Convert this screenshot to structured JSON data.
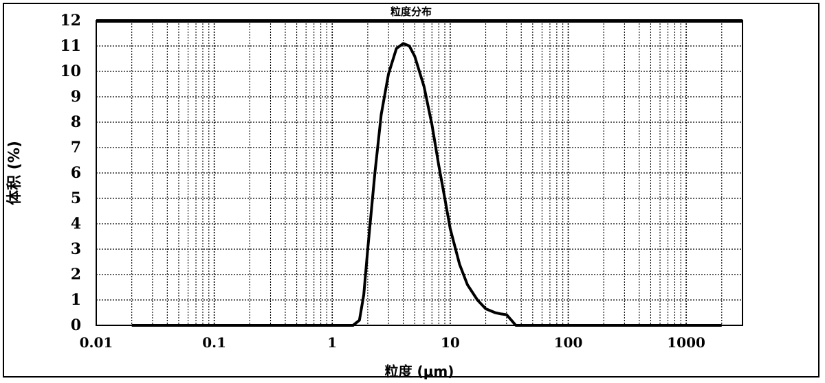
{
  "chart_data": {
    "type": "line",
    "title": "粒度分布",
    "xlabel": "粒度 (μm)",
    "ylabel": "体积 (%)",
    "xscale": "log",
    "xlim": [
      0.01,
      3000
    ],
    "ylim": [
      0,
      12
    ],
    "grid": true,
    "xticks": [
      {
        "value": 0.01,
        "label": "0.01"
      },
      {
        "value": 0.1,
        "label": "0.1"
      },
      {
        "value": 1,
        "label": "1"
      },
      {
        "value": 10,
        "label": "10"
      },
      {
        "value": 100,
        "label": "100"
      },
      {
        "value": 1000,
        "label": "1000"
      }
    ],
    "yticks": [
      "0",
      "1",
      "2",
      "3",
      "4",
      "5",
      "6",
      "7",
      "8",
      "9",
      "10",
      "11",
      "12"
    ],
    "series": [
      {
        "color": "#000000",
        "points": [
          [
            0.02,
            0
          ],
          [
            0.05,
            0
          ],
          [
            0.2,
            0
          ],
          [
            0.5,
            0
          ],
          [
            1.0,
            0
          ],
          [
            1.5,
            0
          ],
          [
            1.7,
            0.2
          ],
          [
            1.85,
            1.2
          ],
          [
            2.0,
            3.0
          ],
          [
            2.3,
            6.0
          ],
          [
            2.6,
            8.3
          ],
          [
            3.0,
            9.9
          ],
          [
            3.5,
            10.9
          ],
          [
            4.0,
            11.1
          ],
          [
            4.5,
            11.0
          ],
          [
            5.0,
            10.6
          ],
          [
            6.0,
            9.4
          ],
          [
            7.0,
            7.9
          ],
          [
            8.0,
            6.3
          ],
          [
            9.0,
            5.0
          ],
          [
            10.0,
            3.8
          ],
          [
            12.0,
            2.4
          ],
          [
            14.0,
            1.6
          ],
          [
            17.0,
            1.0
          ],
          [
            20.0,
            0.65
          ],
          [
            24.0,
            0.5
          ],
          [
            27.0,
            0.45
          ],
          [
            30.0,
            0.42
          ],
          [
            33.0,
            0.2
          ],
          [
            36.0,
            0.0
          ],
          [
            50.0,
            0
          ],
          [
            100.0,
            0
          ],
          [
            500.0,
            0
          ],
          [
            1000.0,
            0
          ],
          [
            2000.0,
            0
          ]
        ]
      }
    ]
  }
}
